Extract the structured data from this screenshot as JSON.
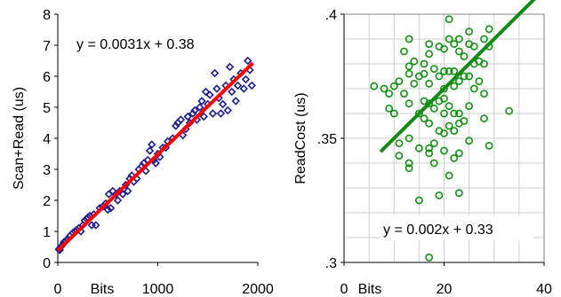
{
  "chart_data": [
    {
      "type": "scatter",
      "ylabel": "Scan+Read (us)",
      "xlabel": "Bits",
      "xlim": [
        0,
        2000
      ],
      "ylim": [
        0,
        8
      ],
      "xticks": [
        "0",
        "1000",
        "2000"
      ],
      "yticks": [
        "0",
        "1",
        "2",
        "3",
        "4",
        "5",
        "6",
        "7",
        "8"
      ],
      "grid": false,
      "marker": "diamond",
      "marker_color": "#1f1f8f",
      "trend_color": "#ff0000",
      "trendline": {
        "slope": 0.0031,
        "intercept": 0.38,
        "x_start": 0,
        "x_end": 1950
      },
      "annotation": "y = 0.0031x + 0.38",
      "points": [
        [
          10,
          0.42
        ],
        [
          20,
          0.4
        ],
        [
          30,
          0.5
        ],
        [
          45,
          0.55
        ],
        [
          60,
          0.65
        ],
        [
          80,
          0.7
        ],
        [
          100,
          0.75
        ],
        [
          120,
          0.85
        ],
        [
          150,
          0.95
        ],
        [
          170,
          1.0
        ],
        [
          190,
          1.05
        ],
        [
          210,
          1.1
        ],
        [
          230,
          1.0
        ],
        [
          250,
          1.2
        ],
        [
          270,
          1.35
        ],
        [
          290,
          1.4
        ],
        [
          300,
          1.45
        ],
        [
          320,
          1.5
        ],
        [
          340,
          1.2
        ],
        [
          360,
          1.55
        ],
        [
          380,
          1.2
        ],
        [
          420,
          1.75
        ],
        [
          450,
          1.8
        ],
        [
          480,
          1.9
        ],
        [
          500,
          1.7
        ],
        [
          510,
          2.2
        ],
        [
          530,
          1.75
        ],
        [
          550,
          2.3
        ],
        [
          580,
          2.2
        ],
        [
          600,
          2.0
        ],
        [
          620,
          2.3
        ],
        [
          650,
          2.2
        ],
        [
          680,
          2.5
        ],
        [
          700,
          2.3
        ],
        [
          720,
          2.7
        ],
        [
          740,
          2.8
        ],
        [
          760,
          2.6
        ],
        [
          790,
          2.7
        ],
        [
          810,
          3.0
        ],
        [
          840,
          3.1
        ],
        [
          860,
          3.2
        ],
        [
          880,
          2.95
        ],
        [
          900,
          3.3
        ],
        [
          920,
          3.6
        ],
        [
          940,
          3.8
        ],
        [
          960,
          3.3
        ],
        [
          980,
          3.2
        ],
        [
          1000,
          3.5
        ],
        [
          1020,
          3.4
        ],
        [
          1050,
          3.7
        ],
        [
          1080,
          3.7
        ],
        [
          1100,
          3.9
        ],
        [
          1150,
          4.0
        ],
        [
          1180,
          4.4
        ],
        [
          1200,
          4.5
        ],
        [
          1230,
          4.6
        ],
        [
          1250,
          4.1
        ],
        [
          1280,
          4.3
        ],
        [
          1300,
          4.7
        ],
        [
          1320,
          4.5
        ],
        [
          1350,
          4.8
        ],
        [
          1370,
          4.9
        ],
        [
          1390,
          4.6
        ],
        [
          1420,
          5.0
        ],
        [
          1440,
          5.2
        ],
        [
          1460,
          4.7
        ],
        [
          1480,
          5.5
        ],
        [
          1500,
          5.1
        ],
        [
          1520,
          5.4
        ],
        [
          1550,
          4.8
        ],
        [
          1570,
          6.1
        ],
        [
          1590,
          5.6
        ],
        [
          1610,
          5.3
        ],
        [
          1630,
          4.8
        ],
        [
          1650,
          5.1
        ],
        [
          1680,
          5.7
        ],
        [
          1700,
          4.9
        ],
        [
          1720,
          6.3
        ],
        [
          1740,
          5.5
        ],
        [
          1760,
          5.9
        ],
        [
          1780,
          5.2
        ],
        [
          1800,
          5.7
        ],
        [
          1830,
          6.1
        ],
        [
          1860,
          5.6
        ],
        [
          1880,
          5.9
        ],
        [
          1900,
          6.5
        ],
        [
          1920,
          6.2
        ],
        [
          1940,
          5.7
        ]
      ]
    },
    {
      "type": "scatter",
      "ylabel": "ReadCost (us)",
      "xlabel": "Bits",
      "xlim": [
        0,
        40
      ],
      "ylim": [
        0.3,
        0.4
      ],
      "xticks": [
        "0",
        "20",
        "40"
      ],
      "yticks": [
        ".3",
        ".35",
        ".4"
      ],
      "grid": true,
      "marker": "circle",
      "marker_color": "#109010",
      "trend_color": "#138a13",
      "trendline": {
        "slope": 0.002,
        "intercept": 0.33,
        "x_start": 7.3,
        "x_end": 40
      },
      "annotation": "y = 0.002x + 0.33",
      "points": [
        [
          6,
          0.371
        ],
        [
          8,
          0.37
        ],
        [
          9,
          0.368
        ],
        [
          9,
          0.362
        ],
        [
          10,
          0.371
        ],
        [
          10,
          0.36
        ],
        [
          11,
          0.343
        ],
        [
          11,
          0.348
        ],
        [
          11,
          0.373
        ],
        [
          12,
          0.368
        ],
        [
          12,
          0.385
        ],
        [
          13,
          0.39
        ],
        [
          13,
          0.379
        ],
        [
          13,
          0.376
        ],
        [
          13,
          0.364
        ],
        [
          13,
          0.35
        ],
        [
          13,
          0.34
        ],
        [
          13,
          0.338
        ],
        [
          14,
          0.372
        ],
        [
          14,
          0.381
        ],
        [
          15,
          0.375
        ],
        [
          15,
          0.36
        ],
        [
          15,
          0.346
        ],
        [
          15,
          0.325
        ],
        [
          16,
          0.376
        ],
        [
          16,
          0.38
        ],
        [
          16,
          0.365
        ],
        [
          16,
          0.358
        ],
        [
          17,
          0.384
        ],
        [
          17,
          0.388
        ],
        [
          17,
          0.372
        ],
        [
          17,
          0.364
        ],
        [
          17,
          0.356
        ],
        [
          17,
          0.346
        ],
        [
          17,
          0.344
        ],
        [
          17,
          0.302
        ],
        [
          18,
          0.378
        ],
        [
          18,
          0.362
        ],
        [
          18,
          0.348
        ],
        [
          18,
          0.34
        ],
        [
          19,
          0.387
        ],
        [
          19,
          0.375
        ],
        [
          19,
          0.365
        ],
        [
          19,
          0.353
        ],
        [
          19,
          0.327
        ],
        [
          20,
          0.386
        ],
        [
          20,
          0.377
        ],
        [
          20,
          0.37
        ],
        [
          20,
          0.366
        ],
        [
          20,
          0.36
        ],
        [
          20,
          0.352
        ],
        [
          20,
          0.345
        ],
        [
          21,
          0.398
        ],
        [
          21,
          0.39
        ],
        [
          21,
          0.377
        ],
        [
          21,
          0.363
        ],
        [
          21,
          0.355
        ],
        [
          21,
          0.335
        ],
        [
          22,
          0.388
        ],
        [
          22,
          0.377
        ],
        [
          22,
          0.371
        ],
        [
          22,
          0.36
        ],
        [
          22,
          0.353
        ],
        [
          22,
          0.342
        ],
        [
          23,
          0.39
        ],
        [
          23,
          0.385
        ],
        [
          23,
          0.373
        ],
        [
          23,
          0.36
        ],
        [
          23,
          0.356
        ],
        [
          23,
          0.344
        ],
        [
          23,
          0.328
        ],
        [
          24,
          0.383
        ],
        [
          24,
          0.375
        ],
        [
          24,
          0.357
        ],
        [
          25,
          0.393
        ],
        [
          25,
          0.388
        ],
        [
          25,
          0.375
        ],
        [
          25,
          0.363
        ],
        [
          25,
          0.349
        ],
        [
          26,
          0.387
        ],
        [
          26,
          0.38
        ],
        [
          26,
          0.37
        ],
        [
          27,
          0.381
        ],
        [
          27,
          0.373
        ],
        [
          28,
          0.39
        ],
        [
          28,
          0.38
        ],
        [
          28,
          0.368
        ],
        [
          28,
          0.358
        ],
        [
          29,
          0.394
        ],
        [
          29,
          0.387
        ],
        [
          29,
          0.347
        ],
        [
          33,
          0.361
        ]
      ]
    }
  ]
}
